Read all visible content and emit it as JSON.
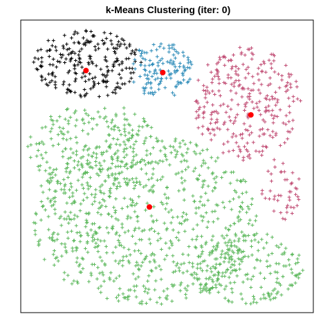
{
  "chart_data": {
    "type": "scatter",
    "title": "k-Means Clustering (iter: 0)",
    "xlabel": "",
    "ylabel": "",
    "xlim": [
      0,
      1
    ],
    "ylim": [
      0,
      1
    ],
    "axes_visible": false,
    "marker": "+",
    "centroid_color": "#ff0000",
    "seed": 7,
    "clusters": [
      {
        "color": "#000000",
        "centroid": [
          0.215,
          0.837
        ],
        "regions": [
          {
            "cx": 0.22,
            "cy": 0.86,
            "rx": 0.19,
            "ry": 0.12,
            "n": 230
          }
        ]
      },
      {
        "color": "#2a8ab8",
        "centroid": [
          0.485,
          0.83
        ],
        "regions": [
          {
            "cx": 0.48,
            "cy": 0.84,
            "rx": 0.11,
            "ry": 0.1,
            "n": 130
          }
        ]
      },
      {
        "color": "#c04a72",
        "centroid": [
          0.795,
          0.681
        ],
        "regions": [
          {
            "cx": 0.78,
            "cy": 0.72,
            "rx": 0.19,
            "ry": 0.2,
            "n": 290
          },
          {
            "cx": 0.9,
            "cy": 0.42,
            "rx": 0.07,
            "ry": 0.12,
            "n": 45
          }
        ]
      },
      {
        "color": "#5cb85c",
        "centroid": [
          0.438,
          0.357
        ],
        "regions": [
          {
            "cx": 0.25,
            "cy": 0.56,
            "rx": 0.24,
            "ry": 0.16,
            "n": 240
          },
          {
            "cx": 0.42,
            "cy": 0.31,
            "rx": 0.4,
            "ry": 0.3,
            "n": 760
          },
          {
            "cx": 0.78,
            "cy": 0.14,
            "rx": 0.2,
            "ry": 0.13,
            "n": 200
          }
        ]
      }
    ]
  }
}
